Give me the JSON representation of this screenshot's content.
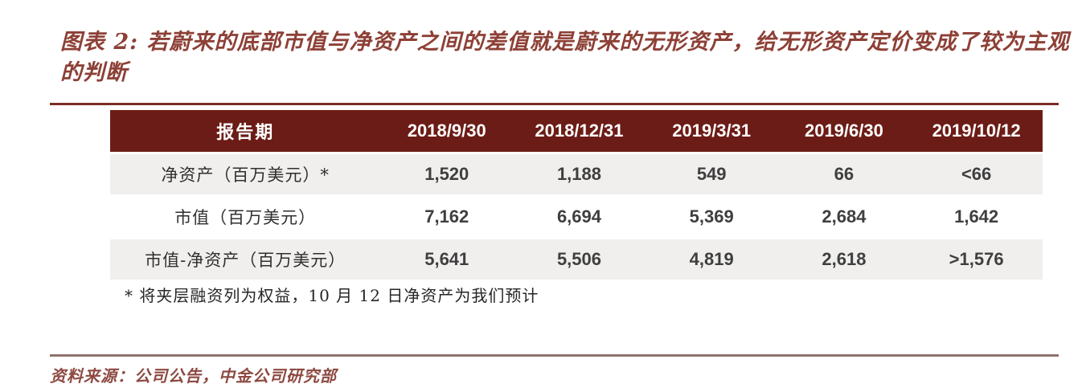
{
  "figure": {
    "title": "图表 2: 若蔚来的底部市值与净资产之间的差值就是蔚来的无形资产，给无形资产定价变成了较为主观的判断"
  },
  "table": {
    "header": [
      "报告期",
      "2018/9/30",
      "2018/12/31",
      "2019/3/31",
      "2019/6/30",
      "2019/10/12"
    ],
    "rows": [
      {
        "label": "净资产（百万美元）*",
        "values": [
          "1,520",
          "1,188",
          "549",
          "66",
          "<66"
        ]
      },
      {
        "label": "市值（百万美元）",
        "values": [
          "7,162",
          "6,694",
          "5,369",
          "2,684",
          "1,642"
        ]
      },
      {
        "label": "市值-净资产（百万美元）",
        "values": [
          "5,641",
          "5,506",
          "4,819",
          "2,618",
          ">1,576"
        ]
      }
    ]
  },
  "footnote": "* 将夹层融资列为权益，10 月 12 日净资产为我们预计",
  "source": "资料来源：公司公告，中金公司研究部",
  "colors": {
    "header_bg": "#6c1c16",
    "row_alt_bg": "#f0efee",
    "title_text": "#8d4036",
    "rule_top": "#7b2d26",
    "rule_bottom": "#8f726c",
    "value_text": "#3f3f3f"
  }
}
